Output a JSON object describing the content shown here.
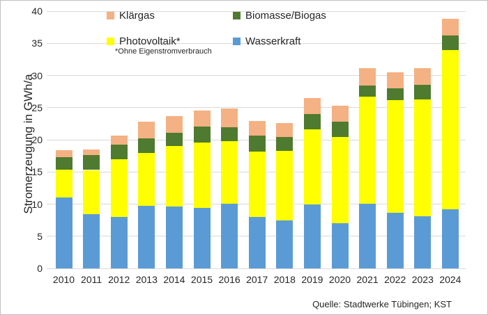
{
  "chart": {
    "y_axis_title": "Stromerzeugung in GWh/a",
    "source": "Quelle: Stadtwerke Tübingen; KST",
    "legend": [
      {
        "label": "Klärgas",
        "color": "#F4B183",
        "footnote": ""
      },
      {
        "label": "Biomasse/Biogas",
        "color": "#4E7B2F",
        "footnote": ""
      },
      {
        "label": "Photovoltaik*",
        "color": "#FFFF00",
        "footnote": "*Ohne Eigenstromverbrauch"
      },
      {
        "label": "Wasserkraft",
        "color": "#5B9BD5",
        "footnote": ""
      }
    ]
  },
  "chart_data": {
    "type": "bar",
    "stacked": true,
    "title": "",
    "xlabel": "",
    "ylabel": "Stromerzeugung in GWh/a",
    "ylim": [
      0,
      40
    ],
    "ytick_step": 5,
    "grid": true,
    "legend_position": "top-inside",
    "categories": [
      "2010",
      "2011",
      "2012",
      "2013",
      "2014",
      "2015",
      "2016",
      "2017",
      "2018",
      "2019",
      "2020",
      "2021",
      "2022",
      "2023",
      "2024"
    ],
    "series": [
      {
        "name": "Wasserkraft",
        "color": "#5B9BD5",
        "values": [
          11.0,
          8.4,
          8.0,
          9.7,
          9.6,
          9.4,
          10.1,
          8.0,
          7.5,
          9.9,
          7.0,
          10.1,
          8.6,
          8.1,
          9.2
        ]
      },
      {
        "name": "Photovoltaik*",
        "color": "#FFFF00",
        "values": [
          4.3,
          6.9,
          9.0,
          8.2,
          9.4,
          10.2,
          9.7,
          10.2,
          10.8,
          11.7,
          13.4,
          16.6,
          17.6,
          18.2,
          24.8
        ]
      },
      {
        "name": "Biomasse/Biogas",
        "color": "#4E7B2F",
        "values": [
          2.0,
          2.3,
          2.2,
          2.3,
          2.1,
          2.5,
          2.2,
          2.4,
          2.1,
          2.4,
          2.4,
          1.7,
          1.8,
          2.2,
          2.2
        ]
      },
      {
        "name": "Klärgas",
        "color": "#F4B183",
        "values": [
          1.1,
          0.9,
          1.4,
          2.6,
          2.6,
          2.4,
          2.9,
          2.3,
          2.2,
          2.5,
          2.5,
          2.7,
          2.5,
          2.6,
          2.6
        ]
      }
    ],
    "totals": [
      18.4,
      18.5,
      20.6,
      22.8,
      23.7,
      24.5,
      24.9,
      22.9,
      22.6,
      26.5,
      25.3,
      31.1,
      30.5,
      31.1,
      38.8
    ],
    "footnote": "*Ohne Eigenstromverbrauch",
    "source": "Quelle: Stadtwerke Tübingen; KST"
  }
}
